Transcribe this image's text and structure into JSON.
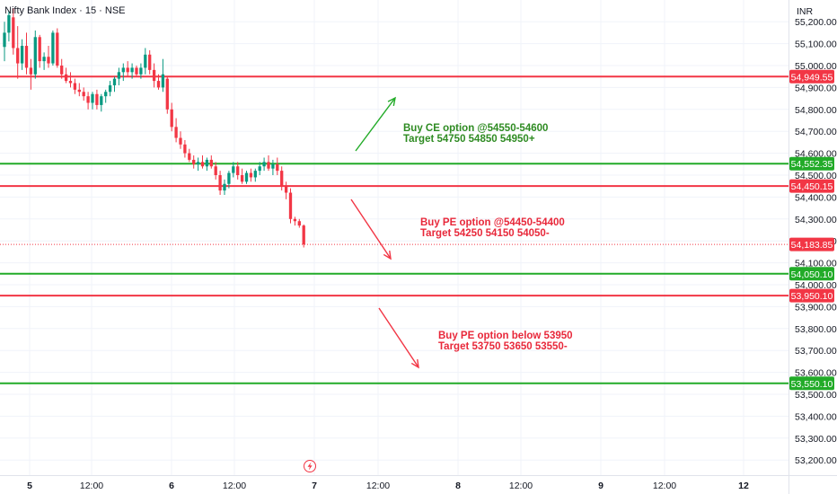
{
  "header": {
    "title": "Nifty Bank Index · 15 · NSE",
    "currency": "INR"
  },
  "colors": {
    "up": "#089981",
    "down": "#f23645",
    "resistance": "#f23645",
    "support": "#22ab28",
    "green_text": "#2e8b22",
    "red_text": "#e8283a"
  },
  "chart_data": {
    "type": "candlestick",
    "title": "Nifty Bank Index · 15 · NSE",
    "y_unit": "INR",
    "ylim": [
      53150,
      55290
    ],
    "y_ticks": [
      "55,200.00",
      "55,100.00",
      "55,000.00",
      "54,900.00",
      "54,800.00",
      "54,700.00",
      "54,600.00",
      "54,500.00",
      "54,400.00",
      "54,300.00",
      "54,200.00",
      "54,100.00",
      "54,000.00",
      "53,900.00",
      "53,800.00",
      "53,700.00",
      "53,600.00",
      "53,500.00",
      "53,400.00",
      "53,300.00",
      "53,200.00"
    ],
    "x_ticks": [
      "5",
      "12:00",
      "6",
      "12:00",
      "7",
      "12:00",
      "8",
      "12:00",
      "9",
      "12:00",
      "12"
    ],
    "grid": true,
    "last_price": {
      "value": 54183.85,
      "label": "54,183.85"
    },
    "price_levels": [
      {
        "value": 54949.55,
        "label": "54,949.55",
        "kind": "resistance"
      },
      {
        "value": 54552.35,
        "label": "54,552.35",
        "kind": "support"
      },
      {
        "value": 54450.15,
        "label": "54,450.15",
        "kind": "resistance"
      },
      {
        "value": 54050.1,
        "label": "54,050.10",
        "kind": "support"
      },
      {
        "value": 53950.1,
        "label": "53,950.10",
        "kind": "resistance"
      },
      {
        "value": 53550.1,
        "label": "53,550.10",
        "kind": "support"
      }
    ],
    "annotations": [
      {
        "line1": "Buy CE option @54550-54600",
        "line2": "Target 54750 54850 54950+",
        "color": "green"
      },
      {
        "line1": "Buy PE option @54450-54400",
        "line2": "Target 54250 54150 54050-",
        "color": "red"
      },
      {
        "line1": "Buy PE option below 53950",
        "line2": "Target 53750 53650 53550-",
        "color": "red"
      }
    ],
    "candles": [
      {
        "o": 55085,
        "h": 55200,
        "l": 55020,
        "c": 55150
      },
      {
        "o": 55150,
        "h": 55250,
        "l": 55110,
        "c": 55230
      },
      {
        "o": 55220,
        "h": 55260,
        "l": 55050,
        "c": 55080
      },
      {
        "o": 55080,
        "h": 55180,
        "l": 54940,
        "c": 55010
      },
      {
        "o": 55010,
        "h": 55120,
        "l": 54980,
        "c": 55090
      },
      {
        "o": 55090,
        "h": 55150,
        "l": 54960,
        "c": 54990
      },
      {
        "o": 54990,
        "h": 55030,
        "l": 54890,
        "c": 54960
      },
      {
        "o": 54960,
        "h": 55160,
        "l": 54940,
        "c": 55130
      },
      {
        "o": 55130,
        "h": 55140,
        "l": 54990,
        "c": 55020
      },
      {
        "o": 55020,
        "h": 55060,
        "l": 54980,
        "c": 55040
      },
      {
        "o": 55040,
        "h": 55090,
        "l": 54990,
        "c": 55010
      },
      {
        "o": 55010,
        "h": 55160,
        "l": 55000,
        "c": 55150
      },
      {
        "o": 55150,
        "h": 55170,
        "l": 54990,
        "c": 55000
      },
      {
        "o": 55000,
        "h": 55030,
        "l": 54940,
        "c": 54960
      },
      {
        "o": 54960,
        "h": 54990,
        "l": 54920,
        "c": 54930
      },
      {
        "o": 54930,
        "h": 54970,
        "l": 54900,
        "c": 54920
      },
      {
        "o": 54920,
        "h": 54940,
        "l": 54870,
        "c": 54890
      },
      {
        "o": 54890,
        "h": 54920,
        "l": 54860,
        "c": 54880
      },
      {
        "o": 54880,
        "h": 54900,
        "l": 54840,
        "c": 54860
      },
      {
        "o": 54860,
        "h": 54880,
        "l": 54800,
        "c": 54830
      },
      {
        "o": 54830,
        "h": 54880,
        "l": 54800,
        "c": 54870
      },
      {
        "o": 54870,
        "h": 54890,
        "l": 54800,
        "c": 54820
      },
      {
        "o": 54820,
        "h": 54870,
        "l": 54790,
        "c": 54860
      },
      {
        "o": 54860,
        "h": 54890,
        "l": 54830,
        "c": 54880
      },
      {
        "o": 54880,
        "h": 54930,
        "l": 54860,
        "c": 54910
      },
      {
        "o": 54910,
        "h": 54950,
        "l": 54880,
        "c": 54940
      },
      {
        "o": 54940,
        "h": 54990,
        "l": 54910,
        "c": 54970
      },
      {
        "o": 54970,
        "h": 55010,
        "l": 54930,
        "c": 54990
      },
      {
        "o": 54990,
        "h": 55020,
        "l": 54950,
        "c": 54970
      },
      {
        "o": 54970,
        "h": 55010,
        "l": 54940,
        "c": 54990
      },
      {
        "o": 54990,
        "h": 55000,
        "l": 54950,
        "c": 54960
      },
      {
        "o": 54960,
        "h": 55010,
        "l": 54940,
        "c": 54990
      },
      {
        "o": 54990,
        "h": 55080,
        "l": 54960,
        "c": 55050
      },
      {
        "o": 55050,
        "h": 55070,
        "l": 54960,
        "c": 54980
      },
      {
        "o": 54980,
        "h": 55010,
        "l": 54900,
        "c": 54930
      },
      {
        "o": 54930,
        "h": 54960,
        "l": 54890,
        "c": 54900
      },
      {
        "o": 54900,
        "h": 55030,
        "l": 54880,
        "c": 54960
      },
      {
        "o": 54940,
        "h": 54950,
        "l": 54780,
        "c": 54800
      },
      {
        "o": 54800,
        "h": 54830,
        "l": 54700,
        "c": 54720
      },
      {
        "o": 54720,
        "h": 54760,
        "l": 54650,
        "c": 54670
      },
      {
        "o": 54670,
        "h": 54700,
        "l": 54620,
        "c": 54640
      },
      {
        "o": 54640,
        "h": 54660,
        "l": 54580,
        "c": 54600
      },
      {
        "o": 54600,
        "h": 54620,
        "l": 54560,
        "c": 54570
      },
      {
        "o": 54570,
        "h": 54590,
        "l": 54530,
        "c": 54550
      },
      {
        "o": 54550,
        "h": 54580,
        "l": 54520,
        "c": 54560
      },
      {
        "o": 54560,
        "h": 54590,
        "l": 54530,
        "c": 54540
      },
      {
        "o": 54540,
        "h": 54580,
        "l": 54520,
        "c": 54570
      },
      {
        "o": 54570,
        "h": 54590,
        "l": 54530,
        "c": 54540
      },
      {
        "o": 54540,
        "h": 54560,
        "l": 54480,
        "c": 54500
      },
      {
        "o": 54500,
        "h": 54520,
        "l": 54410,
        "c": 54430
      },
      {
        "o": 54430,
        "h": 54480,
        "l": 54410,
        "c": 54460
      },
      {
        "o": 54460,
        "h": 54520,
        "l": 54440,
        "c": 54510
      },
      {
        "o": 54510,
        "h": 54560,
        "l": 54490,
        "c": 54540
      },
      {
        "o": 54540,
        "h": 54560,
        "l": 54480,
        "c": 54500
      },
      {
        "o": 54500,
        "h": 54530,
        "l": 54460,
        "c": 54470
      },
      {
        "o": 54470,
        "h": 54520,
        "l": 54460,
        "c": 54510
      },
      {
        "o": 54510,
        "h": 54530,
        "l": 54470,
        "c": 54490
      },
      {
        "o": 54490,
        "h": 54530,
        "l": 54470,
        "c": 54520
      },
      {
        "o": 54520,
        "h": 54560,
        "l": 54500,
        "c": 54540
      },
      {
        "o": 54540,
        "h": 54580,
        "l": 54520,
        "c": 54560
      },
      {
        "o": 54560,
        "h": 54590,
        "l": 54520,
        "c": 54530
      },
      {
        "o": 54530,
        "h": 54570,
        "l": 54500,
        "c": 54550
      },
      {
        "o": 54550,
        "h": 54580,
        "l": 54500,
        "c": 54520
      },
      {
        "o": 54520,
        "h": 54540,
        "l": 54430,
        "c": 54450
      },
      {
        "o": 54450,
        "h": 54470,
        "l": 54390,
        "c": 54420
      },
      {
        "o": 54420,
        "h": 54440,
        "l": 54280,
        "c": 54300
      },
      {
        "o": 54300,
        "h": 54310,
        "l": 54270,
        "c": 54290
      },
      {
        "o": 54290,
        "h": 54300,
        "l": 54260,
        "c": 54270
      },
      {
        "o": 54270,
        "h": 54275,
        "l": 54170,
        "c": 54184
      }
    ]
  }
}
